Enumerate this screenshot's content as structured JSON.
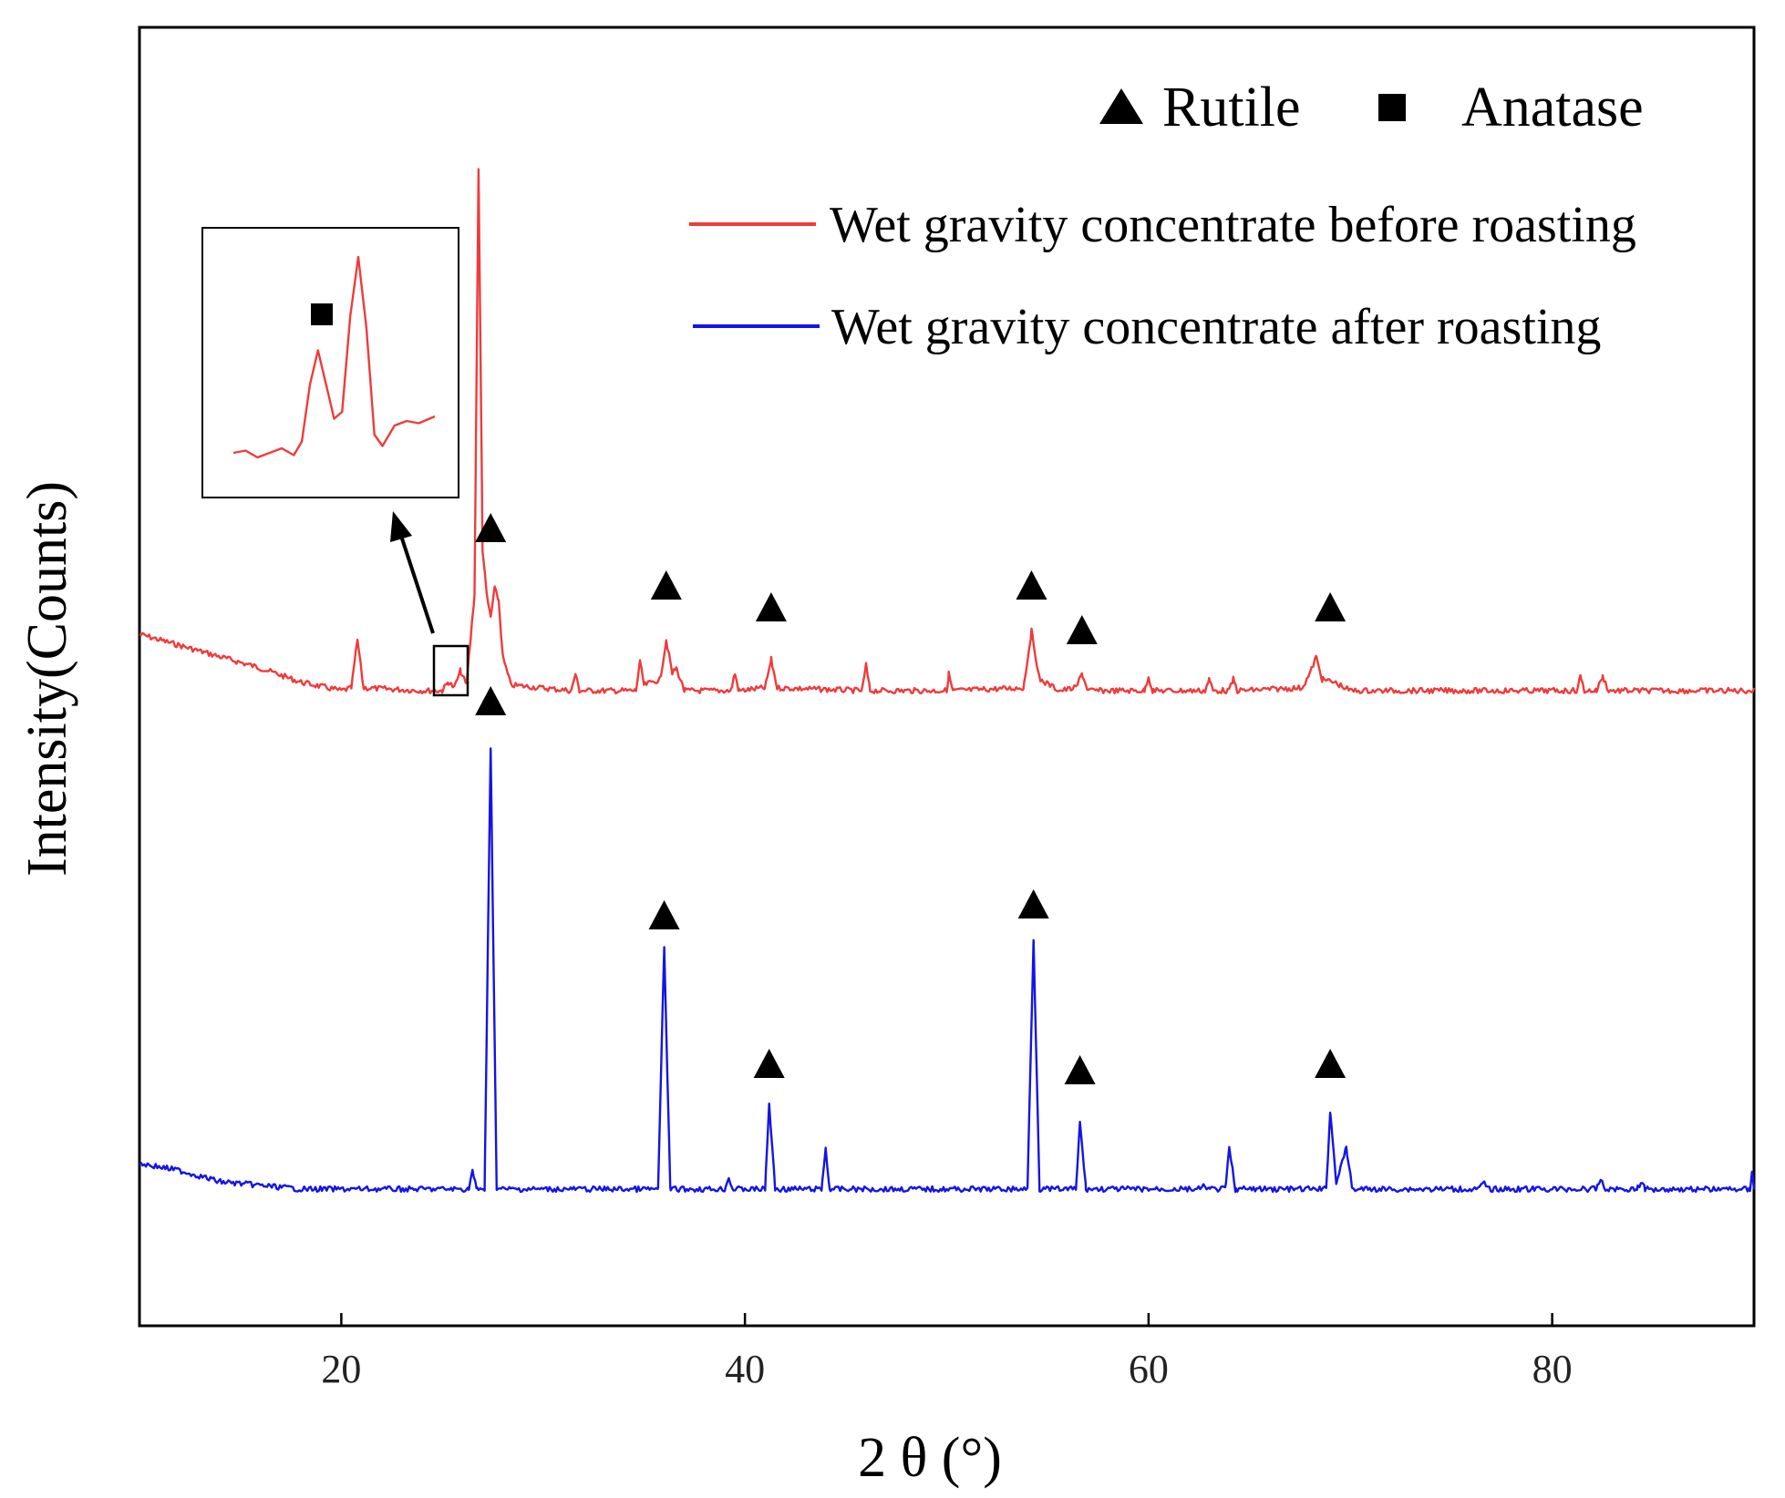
{
  "chart_data": {
    "type": "line",
    "title": "",
    "xlabel": "2 θ (°)",
    "ylabel": "Intensity(Counts)",
    "xlim": [
      10,
      90
    ],
    "xticks": [
      20,
      40,
      60,
      80
    ],
    "yticks": [],
    "grid": false,
    "legend_placement": "top-right",
    "phase_legend": [
      {
        "symbol": "triangle",
        "label": "Rutile"
      },
      {
        "symbol": "square",
        "label": "Anatase"
      }
    ],
    "series": [
      {
        "name": "Wet gravity concentrate before roasting",
        "color": "#ef3b3b",
        "relative_intensity_scale": "arbitrary, offset stacked (upper trace)",
        "points": [
          [
            10,
            0.1
          ],
          [
            12,
            0.08
          ],
          [
            14,
            0.06
          ],
          [
            16,
            0.04
          ],
          [
            18,
            0.015
          ],
          [
            20,
            0.0
          ],
          [
            20.5,
            0.005
          ],
          [
            20.8,
            0.09
          ],
          [
            21.1,
            0.005
          ],
          [
            24,
            0.0
          ],
          [
            25,
            0.0
          ],
          [
            25.3,
            0.015
          ],
          [
            25.6,
            0.005
          ],
          [
            25.9,
            0.035
          ],
          [
            26.2,
            0.01
          ],
          [
            26.6,
            0.17
          ],
          [
            26.8,
            0.92
          ],
          [
            27.0,
            0.25
          ],
          [
            27.2,
            0.17
          ],
          [
            27.4,
            0.13
          ],
          [
            27.6,
            0.18
          ],
          [
            27.8,
            0.16
          ],
          [
            28.0,
            0.06
          ],
          [
            28.4,
            0.01
          ],
          [
            31.4,
            0.0
          ],
          [
            31.6,
            0.03
          ],
          [
            31.8,
            0.0
          ],
          [
            34.6,
            0.0
          ],
          [
            34.8,
            0.05
          ],
          [
            35.0,
            0.01
          ],
          [
            35.8,
            0.02
          ],
          [
            36.1,
            0.09
          ],
          [
            36.4,
            0.03
          ],
          [
            36.6,
            0.04
          ],
          [
            37.0,
            0.0
          ],
          [
            39.3,
            0.0
          ],
          [
            39.5,
            0.03
          ],
          [
            39.7,
            0.0
          ],
          [
            41.0,
            0.005
          ],
          [
            41.3,
            0.055
          ],
          [
            41.6,
            0.005
          ],
          [
            45.8,
            0.0
          ],
          [
            46.0,
            0.045
          ],
          [
            46.2,
            0.0
          ],
          [
            50.0,
            0.0
          ],
          [
            50.1,
            0.03
          ],
          [
            50.3,
            0.0
          ],
          [
            53.8,
            0.005
          ],
          [
            54.2,
            0.105
          ],
          [
            54.6,
            0.02
          ],
          [
            55.6,
            0.0
          ],
          [
            56.4,
            0.005
          ],
          [
            56.7,
            0.03
          ],
          [
            57.0,
            0.0
          ],
          [
            59.8,
            0.0
          ],
          [
            60.0,
            0.025
          ],
          [
            60.2,
            0.0
          ],
          [
            62.8,
            0.0
          ],
          [
            63.0,
            0.02
          ],
          [
            63.2,
            0.0
          ],
          [
            64.0,
            0.0
          ],
          [
            64.2,
            0.02
          ],
          [
            64.4,
            0.0
          ],
          [
            67.6,
            0.005
          ],
          [
            68.0,
            0.03
          ],
          [
            68.3,
            0.06
          ],
          [
            68.6,
            0.02
          ],
          [
            69.2,
            0.015
          ],
          [
            70.0,
            0.0
          ],
          [
            81.2,
            0.0
          ],
          [
            81.4,
            0.025
          ],
          [
            81.6,
            0.0
          ],
          [
            82.2,
            0.0
          ],
          [
            82.5,
            0.025
          ],
          [
            82.8,
            0.0
          ],
          [
            90,
            0.0
          ]
        ]
      },
      {
        "name": "Wet gravity concentrate after roasting",
        "color": "#1414e6",
        "relative_intensity_scale": "arbitrary, offset stacked (lower trace)",
        "points": [
          [
            10,
            0.035
          ],
          [
            12,
            0.025
          ],
          [
            14,
            0.01
          ],
          [
            16,
            0.005
          ],
          [
            18,
            0.0
          ],
          [
            26.3,
            0.0
          ],
          [
            26.5,
            0.025
          ],
          [
            26.7,
            0.0
          ],
          [
            27.1,
            0.0
          ],
          [
            27.4,
            0.6
          ],
          [
            27.7,
            0.0
          ],
          [
            35.7,
            0.0
          ],
          [
            36.0,
            0.33
          ],
          [
            36.3,
            0.0
          ],
          [
            39.0,
            0.0
          ],
          [
            39.2,
            0.015
          ],
          [
            39.4,
            0.0
          ],
          [
            41.0,
            0.0
          ],
          [
            41.2,
            0.115
          ],
          [
            41.5,
            0.0
          ],
          [
            43.8,
            0.0
          ],
          [
            44.0,
            0.055
          ],
          [
            44.2,
            0.0
          ],
          [
            54.0,
            0.0
          ],
          [
            54.3,
            0.34
          ],
          [
            54.6,
            0.0
          ],
          [
            56.4,
            0.0
          ],
          [
            56.6,
            0.09
          ],
          [
            56.9,
            0.0
          ],
          [
            62.6,
            0.0
          ],
          [
            62.8,
            0.005
          ],
          [
            63.0,
            0.0
          ],
          [
            63.8,
            0.0
          ],
          [
            64.0,
            0.055
          ],
          [
            64.3,
            0.0
          ],
          [
            68.8,
            0.0
          ],
          [
            69.0,
            0.105
          ],
          [
            69.3,
            0.01
          ],
          [
            69.8,
            0.055
          ],
          [
            70.1,
            0.0
          ],
          [
            76.4,
            0.0
          ],
          [
            76.6,
            0.01
          ],
          [
            76.8,
            0.0
          ],
          [
            82.2,
            0.0
          ],
          [
            82.4,
            0.015
          ],
          [
            82.6,
            0.0
          ],
          [
            84.2,
            0.0
          ],
          [
            84.4,
            0.01
          ],
          [
            84.6,
            0.0
          ],
          [
            89.8,
            0.0
          ],
          [
            89.9,
            0.025
          ],
          [
            90,
            0.0
          ]
        ]
      }
    ],
    "annotations": [
      {
        "series": "Wet gravity concentrate before roasting",
        "phase": "Rutile",
        "two_theta": 27.4
      },
      {
        "series": "Wet gravity concentrate before roasting",
        "phase": "Rutile",
        "two_theta": 36.1
      },
      {
        "series": "Wet gravity concentrate before roasting",
        "phase": "Rutile",
        "two_theta": 41.3
      },
      {
        "series": "Wet gravity concentrate before roasting",
        "phase": "Rutile",
        "two_theta": 54.2
      },
      {
        "series": "Wet gravity concentrate before roasting",
        "phase": "Rutile",
        "two_theta": 56.7
      },
      {
        "series": "Wet gravity concentrate before roasting",
        "phase": "Rutile",
        "two_theta": 69.0
      },
      {
        "series": "Wet gravity concentrate before roasting",
        "phase": "Anatase",
        "two_theta": 25.3,
        "note": "shown in zoomed inset"
      },
      {
        "series": "Wet gravity concentrate after roasting",
        "phase": "Rutile",
        "two_theta": 27.4
      },
      {
        "series": "Wet gravity concentrate after roasting",
        "phase": "Rutile",
        "two_theta": 36.0
      },
      {
        "series": "Wet gravity concentrate after roasting",
        "phase": "Rutile",
        "two_theta": 41.2
      },
      {
        "series": "Wet gravity concentrate after roasting",
        "phase": "Rutile",
        "two_theta": 54.3
      },
      {
        "series": "Wet gravity concentrate after roasting",
        "phase": "Rutile",
        "two_theta": 56.6
      },
      {
        "series": "Wet gravity concentrate after roasting",
        "phase": "Rutile",
        "two_theta": 69.0
      }
    ],
    "inset": {
      "series": "Wet gravity concentrate before roasting",
      "x_range": [
        24.8,
        26.2
      ],
      "marker_phase": "Anatase"
    }
  }
}
